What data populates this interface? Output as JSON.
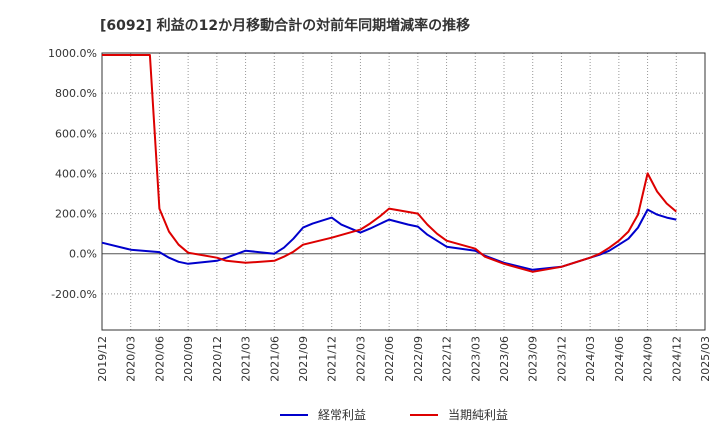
{
  "chart_data": {
    "type": "line",
    "title": "[6092]  利益の12か月移動合計の対前年同期増減率の推移",
    "xlabel": "",
    "ylabel": "",
    "ylim": [
      -380,
      1000
    ],
    "yticks": [
      -200,
      0,
      200,
      400,
      600,
      800,
      1000
    ],
    "ytick_labels": [
      "-200.0%",
      "0.0%",
      "200.0%",
      "400.0%",
      "600.0%",
      "800.0%",
      "1000.0%"
    ],
    "xlim": [
      0,
      63
    ],
    "xtick_positions": [
      0,
      3,
      6,
      9,
      12,
      15,
      18,
      21,
      24,
      27,
      30,
      33,
      36,
      39,
      42,
      45,
      48,
      51,
      54,
      57,
      60,
      63
    ],
    "xtick_labels": [
      "2019/12",
      "2020/03",
      "2020/06",
      "2020/09",
      "2020/12",
      "2021/03",
      "2021/06",
      "2021/09",
      "2021/12",
      "2022/03",
      "2022/06",
      "2022/09",
      "2022/12",
      "2023/03",
      "2023/06",
      "2023/09",
      "2023/12",
      "2024/03",
      "2024/06",
      "2024/09",
      "2024/12",
      "2025/03"
    ],
    "grid": true,
    "legend_position": "bottom-center",
    "series": [
      {
        "name": "経常利益",
        "color": "#0000cc",
        "points": [
          [
            0,
            55
          ],
          [
            3,
            20
          ],
          [
            6,
            8
          ],
          [
            7,
            -20
          ],
          [
            8,
            -40
          ],
          [
            9,
            -50
          ],
          [
            12,
            -35
          ],
          [
            13,
            -20
          ],
          [
            15,
            15
          ],
          [
            18,
            0
          ],
          [
            19,
            30
          ],
          [
            20,
            75
          ],
          [
            21,
            130
          ],
          [
            22,
            150
          ],
          [
            24,
            180
          ],
          [
            25,
            145
          ],
          [
            27,
            105
          ],
          [
            28,
            125
          ],
          [
            30,
            170
          ],
          [
            32,
            145
          ],
          [
            33,
            135
          ],
          [
            34,
            95
          ],
          [
            36,
            35
          ],
          [
            39,
            15
          ],
          [
            40,
            -10
          ],
          [
            42,
            -45
          ],
          [
            45,
            -80
          ],
          [
            48,
            -65
          ],
          [
            51,
            -20
          ],
          [
            52,
            -5
          ],
          [
            53,
            15
          ],
          [
            54,
            45
          ],
          [
            55,
            75
          ],
          [
            56,
            130
          ],
          [
            57,
            220
          ],
          [
            58,
            195
          ],
          [
            59,
            180
          ],
          [
            60,
            170
          ]
        ]
      },
      {
        "name": "当期純利益",
        "color": "#dd0000",
        "points": [
          [
            0,
            990
          ],
          [
            5,
            990
          ],
          [
            6,
            225
          ],
          [
            7,
            110
          ],
          [
            8,
            45
          ],
          [
            9,
            5
          ],
          [
            12,
            -20
          ],
          [
            13,
            -35
          ],
          [
            15,
            -45
          ],
          [
            18,
            -35
          ],
          [
            19,
            -15
          ],
          [
            20,
            10
          ],
          [
            21,
            45
          ],
          [
            24,
            80
          ],
          [
            27,
            120
          ],
          [
            28,
            150
          ],
          [
            29,
            185
          ],
          [
            30,
            225
          ],
          [
            33,
            200
          ],
          [
            34,
            145
          ],
          [
            35,
            100
          ],
          [
            36,
            65
          ],
          [
            39,
            25
          ],
          [
            40,
            -15
          ],
          [
            42,
            -50
          ],
          [
            45,
            -90
          ],
          [
            48,
            -65
          ],
          [
            51,
            -20
          ],
          [
            52,
            0
          ],
          [
            53,
            30
          ],
          [
            54,
            65
          ],
          [
            55,
            110
          ],
          [
            56,
            195
          ],
          [
            57,
            400
          ],
          [
            58,
            310
          ],
          [
            59,
            250
          ],
          [
            60,
            210
          ]
        ]
      }
    ]
  }
}
